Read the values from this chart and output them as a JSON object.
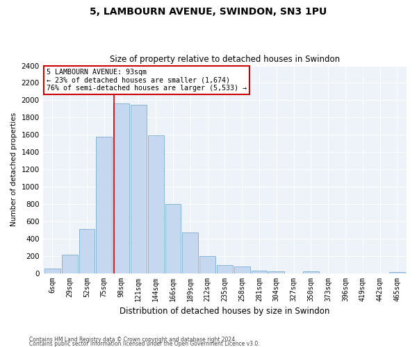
{
  "title": "5, LAMBOURN AVENUE, SWINDON, SN3 1PU",
  "subtitle": "Size of property relative to detached houses in Swindon",
  "xlabel": "Distribution of detached houses by size in Swindon",
  "ylabel": "Number of detached properties",
  "footnote1": "Contains HM Land Registry data © Crown copyright and database right 2024.",
  "footnote2": "Contains public sector information licensed under the Open Government Licence v3.0.",
  "annotation_line1": "5 LAMBOURN AVENUE: 93sqm",
  "annotation_line2": "← 23% of detached houses are smaller (1,674)",
  "annotation_line3": "76% of semi-detached houses are larger (5,533) →",
  "bar_color": "#c5d8f0",
  "bar_edge_color": "#7aadd4",
  "vline_color": "#cc0000",
  "annotation_box_color": "#cc0000",
  "background_color": "#eef2f9",
  "categories": [
    "6sqm",
    "29sqm",
    "52sqm",
    "75sqm",
    "98sqm",
    "121sqm",
    "144sqm",
    "166sqm",
    "189sqm",
    "212sqm",
    "235sqm",
    "258sqm",
    "281sqm",
    "304sqm",
    "327sqm",
    "350sqm",
    "373sqm",
    "396sqm",
    "419sqm",
    "442sqm",
    "465sqm"
  ],
  "values": [
    50,
    215,
    510,
    1580,
    1960,
    1950,
    1590,
    800,
    470,
    195,
    90,
    80,
    25,
    20,
    0,
    20,
    0,
    0,
    0,
    0,
    10
  ],
  "ylim": [
    0,
    2400
  ],
  "yticks": [
    0,
    200,
    400,
    600,
    800,
    1000,
    1200,
    1400,
    1600,
    1800,
    2000,
    2200,
    2400
  ],
  "vline_xindex": 4
}
